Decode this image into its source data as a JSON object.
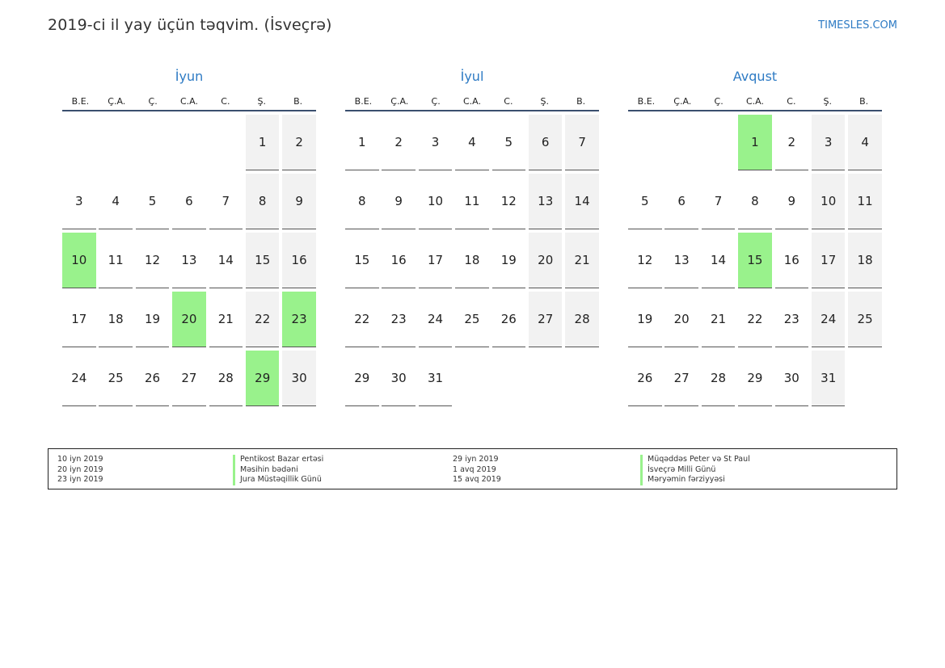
{
  "title": "2019-ci il yay üçün təqvim. (İsveçrə)",
  "brand": "TIMESLES.COM",
  "colors": {
    "holiday": "#99f28c",
    "weekend": "#f2f2f2",
    "accent": "#2e7bc4"
  },
  "weekdays": [
    "B.E.",
    "Ç.A.",
    "Ç.",
    "C.A.",
    "C.",
    "Ş.",
    "B."
  ],
  "months": [
    {
      "name": "İyun",
      "offset": 5,
      "days": 30,
      "holidays": [
        10,
        20,
        23,
        29
      ]
    },
    {
      "name": "İyul",
      "offset": 0,
      "days": 31,
      "holidays": []
    },
    {
      "name": "Avqust",
      "offset": 3,
      "days": 31,
      "holidays": [
        1,
        15
      ]
    }
  ],
  "legend": [
    {
      "date": "10 iyn 2019",
      "name": "Pentikost Bazar ertəsi"
    },
    {
      "date": "20 iyn 2019",
      "name": "Məsihin bədəni"
    },
    {
      "date": "23 iyn 2019",
      "name": "Jura Müstəqillik Günü"
    },
    {
      "date": "29 iyn 2019",
      "name": "Müqəddəs Peter və St Paul"
    },
    {
      "date": "1 avq 2019",
      "name": "İsveçrə Milli Günü"
    },
    {
      "date": "15 avq 2019",
      "name": "Məryəmin fərziyyəsi"
    }
  ]
}
